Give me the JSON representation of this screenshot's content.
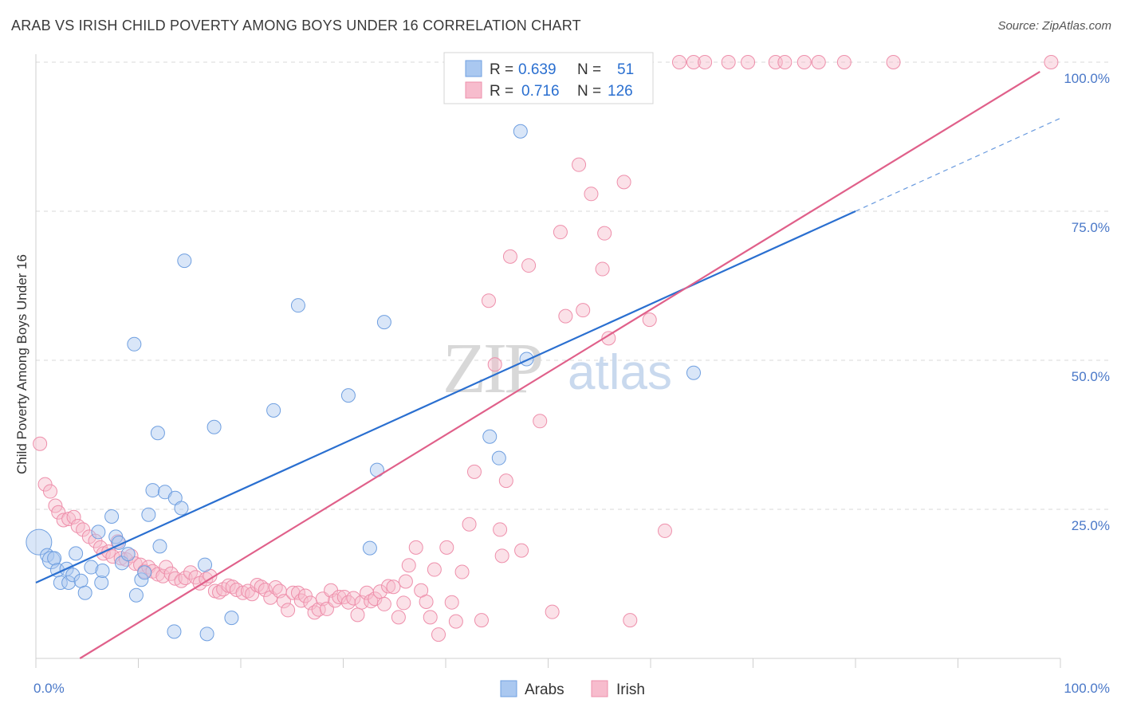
{
  "title": "ARAB VS IRISH CHILD POVERTY AMONG BOYS UNDER 16 CORRELATION CHART",
  "source": "Source: ZipAtlas.com",
  "watermark": {
    "zip": "ZIP",
    "atlas": "atlas"
  },
  "colors": {
    "arabs_fill": "#aac8f0",
    "arabs_stroke": "#6f9fe0",
    "arabs_line": "#2a6fd0",
    "irish_fill": "#f7bccd",
    "irish_stroke": "#ee8fab",
    "irish_line": "#e0608a",
    "grid": "#d8d8d8",
    "tick_text": "#4a78c8"
  },
  "stats_legend": {
    "rows": [
      {
        "r_label": "R =",
        "r_value": "0.639",
        "n_label": "N =",
        "n_value": "51"
      },
      {
        "r_label": "R =",
        "r_value": "0.716",
        "n_label": "N =",
        "n_value": "126"
      }
    ]
  },
  "bottom_legend": {
    "items": [
      "Arabs",
      "Irish"
    ]
  },
  "chart_data": {
    "type": "scatter",
    "title": "ARAB VS IRISH CHILD POVERTY AMONG BOYS UNDER 16 CORRELATION CHART",
    "xlabel": "",
    "ylabel": "Child Poverty Among Boys Under 16",
    "xlim": [
      0,
      100
    ],
    "ylim": [
      0,
      100
    ],
    "x_ticks": [
      "0.0%",
      "100.0%"
    ],
    "y_ticks": [
      "25.0%",
      "50.0%",
      "75.0%",
      "100.0%"
    ],
    "y_tick_values": [
      25,
      50,
      75,
      100
    ],
    "grid": true,
    "legend_position": "top-center",
    "series": [
      {
        "name": "Arabs",
        "r": 0.639,
        "n": 51,
        "trend": {
          "x0": 0,
          "y0": 12.7,
          "x1": 80,
          "y1": 75.0,
          "dashed_to_x": 100,
          "dashed_to_y": 90.6
        },
        "points": [
          [
            0.3,
            19.5,
            3
          ],
          [
            1.1,
            17.3,
            1
          ],
          [
            1.5,
            16.5,
            2
          ],
          [
            1.8,
            16.8,
            1
          ],
          [
            2.1,
            14.8,
            1
          ],
          [
            2.4,
            12.7,
            1
          ],
          [
            3.0,
            15.0,
            1
          ],
          [
            3.2,
            12.7,
            1
          ],
          [
            3.6,
            14.0,
            1
          ],
          [
            3.9,
            17.6,
            1
          ],
          [
            4.4,
            13.0,
            1
          ],
          [
            4.8,
            11.0,
            1
          ],
          [
            5.4,
            15.3,
            1
          ],
          [
            6.1,
            21.2,
            1
          ],
          [
            6.4,
            12.7,
            1
          ],
          [
            6.5,
            14.7,
            1
          ],
          [
            7.4,
            23.8,
            1
          ],
          [
            7.8,
            20.4,
            1
          ],
          [
            8.1,
            19.4,
            1
          ],
          [
            8.4,
            16.0,
            1
          ],
          [
            9.0,
            17.5,
            1
          ],
          [
            9.6,
            52.7,
            1
          ],
          [
            9.8,
            10.6,
            1
          ],
          [
            10.3,
            13.2,
            1
          ],
          [
            10.6,
            14.4,
            1
          ],
          [
            11.0,
            24.1,
            1
          ],
          [
            11.4,
            28.2,
            1
          ],
          [
            11.9,
            37.8,
            1
          ],
          [
            12.1,
            18.8,
            1
          ],
          [
            12.6,
            27.9,
            1
          ],
          [
            13.5,
            4.5,
            1
          ],
          [
            13.6,
            26.9,
            1
          ],
          [
            14.2,
            25.2,
            1
          ],
          [
            14.5,
            66.7,
            1
          ],
          [
            16.5,
            15.7,
            1
          ],
          [
            16.7,
            4.1,
            1
          ],
          [
            17.4,
            38.8,
            1
          ],
          [
            19.1,
            6.8,
            1
          ],
          [
            23.2,
            41.6,
            1
          ],
          [
            25.6,
            59.2,
            1
          ],
          [
            30.5,
            44.1,
            1
          ],
          [
            32.6,
            18.5,
            1
          ],
          [
            33.3,
            31.6,
            1
          ],
          [
            34.0,
            56.4,
            1
          ],
          [
            44.3,
            37.2,
            1
          ],
          [
            45.2,
            33.6,
            1
          ],
          [
            47.3,
            88.4,
            1
          ],
          [
            47.9,
            50.2,
            1
          ],
          [
            64.2,
            47.9,
            1
          ]
        ]
      },
      {
        "name": "Irish",
        "r": 0.716,
        "n": 126,
        "trend": {
          "x0": 4.3,
          "y0": 0,
          "x1": 98,
          "y1": 98.4
        },
        "points": [
          [
            0.4,
            36.0
          ],
          [
            0.9,
            29.2
          ],
          [
            1.4,
            28.0
          ],
          [
            1.9,
            25.6
          ],
          [
            2.2,
            24.5
          ],
          [
            2.7,
            23.2
          ],
          [
            3.2,
            23.4
          ],
          [
            3.7,
            23.7
          ],
          [
            4.1,
            22.2
          ],
          [
            4.6,
            21.6
          ],
          [
            5.2,
            20.4
          ],
          [
            5.8,
            19.7
          ],
          [
            6.3,
            18.6
          ],
          [
            6.6,
            17.6
          ],
          [
            7.1,
            17.9
          ],
          [
            7.5,
            17.1
          ],
          [
            8.0,
            19.6
          ],
          [
            8.3,
            16.8
          ],
          [
            8.8,
            16.6
          ],
          [
            9.3,
            17.2
          ],
          [
            9.7,
            15.9
          ],
          [
            10.2,
            15.7
          ],
          [
            10.6,
            14.6
          ],
          [
            11.0,
            15.3
          ],
          [
            11.4,
            14.6
          ],
          [
            11.9,
            14.1
          ],
          [
            12.4,
            13.8
          ],
          [
            12.7,
            15.3
          ],
          [
            13.2,
            14.2
          ],
          [
            13.6,
            13.4
          ],
          [
            14.2,
            13.0
          ],
          [
            14.6,
            13.5
          ],
          [
            15.1,
            14.4
          ],
          [
            15.6,
            13.6
          ],
          [
            16.0,
            12.6
          ],
          [
            16.6,
            13.3
          ],
          [
            17.0,
            13.8
          ],
          [
            17.5,
            11.3
          ],
          [
            17.9,
            11.1
          ],
          [
            18.3,
            11.6
          ],
          [
            18.8,
            12.2
          ],
          [
            19.2,
            12.0
          ],
          [
            19.6,
            11.5
          ],
          [
            20.2,
            11.0
          ],
          [
            20.7,
            11.3
          ],
          [
            21.1,
            10.8
          ],
          [
            21.6,
            12.3
          ],
          [
            22.0,
            12.0
          ],
          [
            22.4,
            11.5
          ],
          [
            22.9,
            10.2
          ],
          [
            23.4,
            11.9
          ],
          [
            23.8,
            11.3
          ],
          [
            24.2,
            9.6
          ],
          [
            24.6,
            8.1
          ],
          [
            25.1,
            11.0
          ],
          [
            25.6,
            11.0
          ],
          [
            25.9,
            9.7
          ],
          [
            26.3,
            10.5
          ],
          [
            26.8,
            9.3
          ],
          [
            27.2,
            7.7
          ],
          [
            27.6,
            8.2
          ],
          [
            28.0,
            10.0
          ],
          [
            28.4,
            8.3
          ],
          [
            28.8,
            11.4
          ],
          [
            29.2,
            9.7
          ],
          [
            29.6,
            10.3
          ],
          [
            30.1,
            10.3
          ],
          [
            30.5,
            9.4
          ],
          [
            31.0,
            10.1
          ],
          [
            31.4,
            7.3
          ],
          [
            31.8,
            9.4
          ],
          [
            32.3,
            11.0
          ],
          [
            32.7,
            9.6
          ],
          [
            33.1,
            10.0
          ],
          [
            33.6,
            11.2
          ],
          [
            34.0,
            9.1
          ],
          [
            34.4,
            12.1
          ],
          [
            34.9,
            12.0
          ],
          [
            35.4,
            6.9
          ],
          [
            35.9,
            9.3
          ],
          [
            36.1,
            12.9
          ],
          [
            36.4,
            15.6
          ],
          [
            37.1,
            18.6
          ],
          [
            37.6,
            11.4
          ],
          [
            38.1,
            9.5
          ],
          [
            38.5,
            6.9
          ],
          [
            38.9,
            14.9
          ],
          [
            39.3,
            4.0
          ],
          [
            40.1,
            18.6
          ],
          [
            40.6,
            9.4
          ],
          [
            41.0,
            6.2
          ],
          [
            41.6,
            14.5
          ],
          [
            42.3,
            22.5
          ],
          [
            42.8,
            31.3
          ],
          [
            43.5,
            6.4
          ],
          [
            44.2,
            60.0
          ],
          [
            44.8,
            49.3
          ],
          [
            45.3,
            21.6
          ],
          [
            45.5,
            17.2
          ],
          [
            45.9,
            29.8
          ],
          [
            46.3,
            67.4
          ],
          [
            47.4,
            18.1
          ],
          [
            48.1,
            65.9
          ],
          [
            49.2,
            39.8
          ],
          [
            50.4,
            7.8
          ],
          [
            51.2,
            71.5
          ],
          [
            51.7,
            57.4
          ],
          [
            53.0,
            82.8
          ],
          [
            53.4,
            58.4
          ],
          [
            54.2,
            77.9
          ],
          [
            55.3,
            65.3
          ],
          [
            55.5,
            71.3
          ],
          [
            55.9,
            53.7
          ],
          [
            57.4,
            79.9
          ],
          [
            58.0,
            6.4
          ],
          [
            59.9,
            56.8
          ],
          [
            61.4,
            21.4
          ],
          [
            62.8,
            100.0
          ],
          [
            64.2,
            100.0
          ],
          [
            65.3,
            100.0
          ],
          [
            67.6,
            100.0
          ],
          [
            69.5,
            100.0
          ],
          [
            72.2,
            100.0
          ],
          [
            73.1,
            100.0
          ],
          [
            75.0,
            100.0
          ],
          [
            76.4,
            100.0
          ],
          [
            78.9,
            100.0
          ],
          [
            83.7,
            100.0
          ],
          [
            99.1,
            100.0
          ]
        ]
      }
    ]
  }
}
